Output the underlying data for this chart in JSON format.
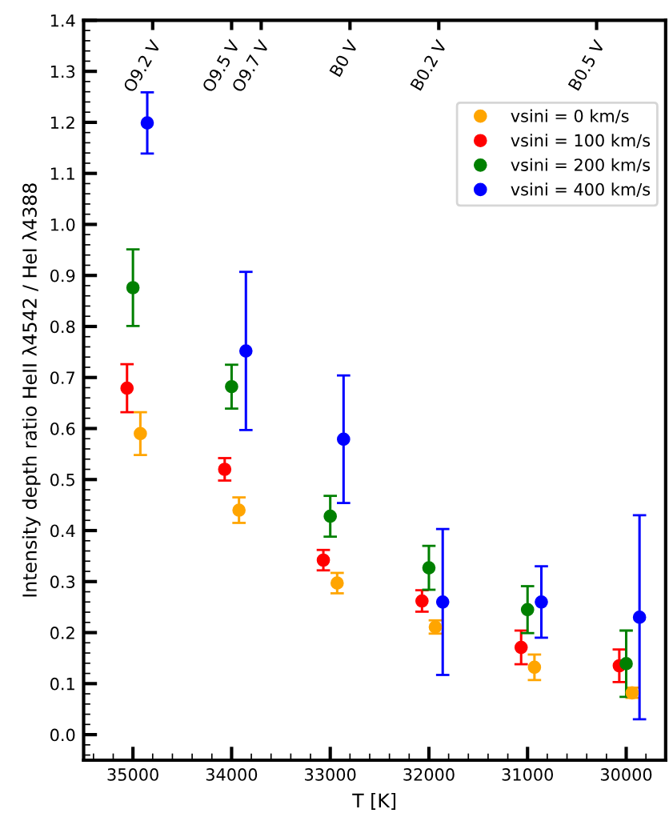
{
  "chart_data": {
    "type": "scatter",
    "xlabel": "T [K]",
    "ylabel": "Intensity depth ratio HeII λ4542 / HeI λ4388",
    "xlim": [
      35500,
      29600
    ],
    "xticks": [
      35000,
      34000,
      33000,
      32000,
      31000,
      30000
    ],
    "ylim": [
      -0.05,
      1.4
    ],
    "yticks": [
      {
        "value": 0.0,
        "label": "0.0"
      },
      {
        "value": 0.1,
        "label": "0.1"
      },
      {
        "value": 0.2,
        "label": "0.2"
      },
      {
        "value": 0.3,
        "label": "0.3"
      },
      {
        "value": 0.4,
        "label": "0.4"
      },
      {
        "value": 0.5,
        "label": "0.5"
      },
      {
        "value": 0.6,
        "label": "0.6"
      },
      {
        "value": 0.7,
        "label": "0.7"
      },
      {
        "value": 0.8,
        "label": "0.8"
      },
      {
        "value": 0.9,
        "label": "0.9"
      },
      {
        "value": 1.0,
        "label": "1.0"
      },
      {
        "value": 1.1,
        "label": "1.1"
      },
      {
        "value": 1.2,
        "label": "1.2"
      },
      {
        "value": 1.3,
        "label": "1.3"
      },
      {
        "value": 1.4,
        "label": "1.4"
      }
    ],
    "ref_lines": [
      {
        "axis": "x",
        "value": 34800,
        "label": "O9.2 V"
      },
      {
        "axis": "x",
        "value": 34000,
        "label": "O9.5 V"
      },
      {
        "axis": "x",
        "value": 33700,
        "label": "O9.7 V"
      },
      {
        "axis": "x",
        "value": 32800,
        "label": "B0 V"
      },
      {
        "axis": "x",
        "value": 31900,
        "label": "B0.2 V"
      },
      {
        "axis": "x",
        "value": 30300,
        "label": "B0.5 V"
      }
    ],
    "grid": false,
    "legend": "top right",
    "marker": "circle",
    "series": [
      {
        "name": "vsini = 0 km/s",
        "color": "#ffa500",
        "x": [
          34925,
          33925,
          32930,
          31935,
          30930,
          29940
        ],
        "values": [
          0.59,
          0.44,
          0.297,
          0.211,
          0.132,
          0.082
        ],
        "errors": [
          0.042,
          0.025,
          0.02,
          0.013,
          0.025,
          0.01
        ]
      },
      {
        "name": "vsini = 100 km/s",
        "color": "#ff0000",
        "x": [
          35060,
          34070,
          33070,
          32070,
          31065,
          30070
        ],
        "values": [
          0.679,
          0.52,
          0.342,
          0.262,
          0.171,
          0.135
        ],
        "errors": [
          0.047,
          0.022,
          0.02,
          0.021,
          0.033,
          0.032
        ]
      },
      {
        "name": "vsini = 200 km/s",
        "color": "#008000",
        "x": [
          35000,
          34000,
          33000,
          32000,
          31000,
          30000
        ],
        "values": [
          0.876,
          0.682,
          0.428,
          0.327,
          0.245,
          0.139
        ],
        "errors": [
          0.075,
          0.043,
          0.04,
          0.043,
          0.046,
          0.065
        ]
      },
      {
        "name": "vsini = 400 km/s",
        "color": "#0000ff",
        "x": [
          34855,
          33855,
          32865,
          31860,
          30860,
          29865
        ],
        "values": [
          1.199,
          0.752,
          0.579,
          0.26,
          0.26,
          0.23
        ],
        "errors": [
          0.06,
          0.155,
          0.125,
          0.143,
          0.07,
          0.2
        ]
      }
    ]
  }
}
